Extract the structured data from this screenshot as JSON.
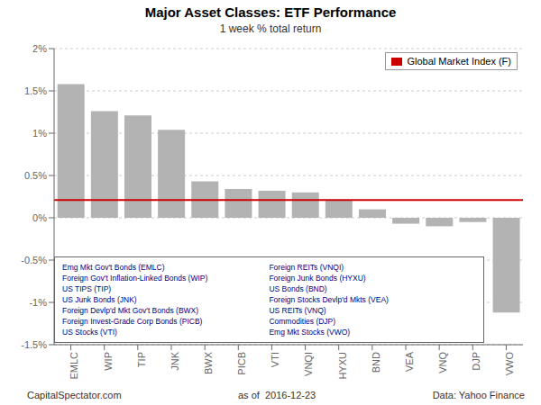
{
  "chart_data": {
    "type": "bar",
    "title": "Major Asset Classes: ETF Performance",
    "subtitle": "1 week % total return",
    "categories": [
      "EMLC",
      "WIP",
      "TIP",
      "JNK",
      "BWX",
      "PICB",
      "VTI",
      "VNQI",
      "HYXU",
      "BND",
      "VEA",
      "VNQ",
      "DJP",
      "VWO"
    ],
    "values": [
      1.58,
      1.26,
      1.21,
      1.04,
      0.43,
      0.34,
      0.32,
      0.3,
      0.21,
      0.1,
      -0.07,
      -0.1,
      -0.05,
      -1.12
    ],
    "color": "#b3b3b3",
    "ylim": [
      -1.5,
      2.0
    ],
    "yticks": [
      {
        "value": -1.5,
        "label": "-1.5%"
      },
      {
        "value": -1.0,
        "label": "-1%"
      },
      {
        "value": -0.5,
        "label": "-0.5%"
      },
      {
        "value": 0.0,
        "label": "0%"
      },
      {
        "value": 0.5,
        "label": "0.5%"
      },
      {
        "value": 1.0,
        "label": "1%"
      },
      {
        "value": 1.5,
        "label": "1.5%"
      },
      {
        "value": 2.0,
        "label": "2%"
      }
    ],
    "grid": true,
    "legend": "upper right",
    "reference_line": {
      "name": "Global Market Index (F)",
      "value": 0.21,
      "color": "#cc0000"
    },
    "annotations": {
      "color": "#000080",
      "columns": [
        [
          "Emg Mkt Gov't Bonds (EMLC)",
          "Foreign Gov't Inflation-Linked Bonds (WIP)",
          "US TIPS (TIP)",
          "US Junk Bonds (JNK)",
          "Foreign Devlp'd Mkt Gov't Bonds (BWX)",
          "Foreign Invest-Grade Corp Bonds (PICB)",
          "US Stocks (VTI)"
        ],
        [
          "Foreign REITs (VNQI)",
          "Foreign Junk Bonds (HYXU)",
          "US Bonds (BND)",
          "Foreign Stocks Devlp'd Mkts (VEA)",
          "US REITs (VNQ)",
          "Commodities (DJP)",
          "Emg Mkt Stocks (VWO)"
        ]
      ]
    },
    "footer": [
      "CapitalSpectator.com",
      "as of  2016-12-23",
      "Data: Yahoo Finance"
    ]
  }
}
